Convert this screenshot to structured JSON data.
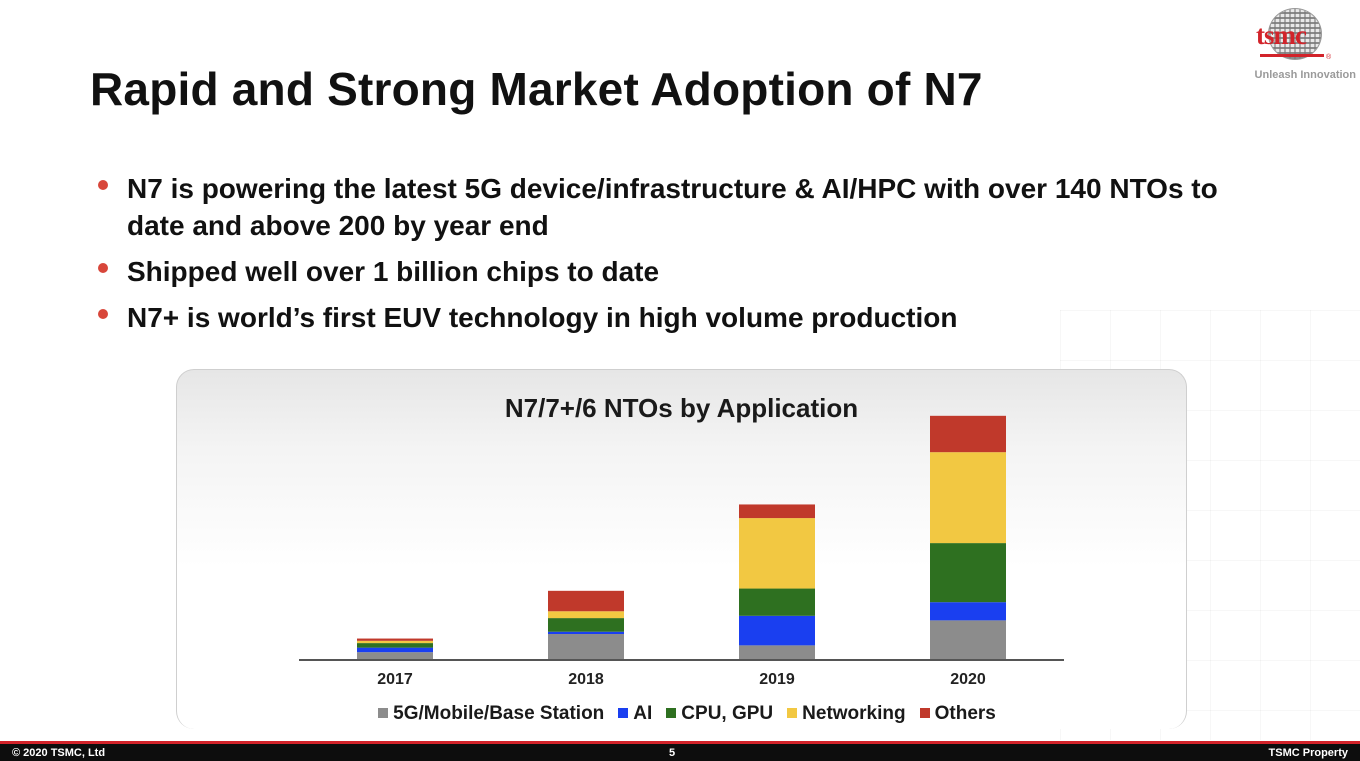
{
  "slide": {
    "title": "Rapid and Strong Market Adoption of N7",
    "bullets": [
      "N7 is powering the latest 5G device/infrastructure & AI/HPC with over 140 NTOs to date and above 200 by year end",
      "Shipped well over 1 billion chips to date",
      "N7+ is world’s first EUV technology in high volume production"
    ]
  },
  "logo": {
    "wordmark": "tsmc",
    "registered": "®",
    "tagline": "Unleash Innovation"
  },
  "footer": {
    "copyright": "© 2020 TSMC, Ltd",
    "page_number": "5",
    "property": "TSMC Property"
  },
  "colors": {
    "accent": "#d2232a",
    "bullet": "#d8463a"
  },
  "chart_data": {
    "type": "bar",
    "stacked": true,
    "title": "N7/7+/6 NTOs by Application",
    "categories": [
      "2017",
      "2018",
      "2019",
      "2020"
    ],
    "series": [
      {
        "name": "5G/Mobile/Base Station",
        "color": "#8c8c8c",
        "values": [
          3,
          11,
          6,
          17
        ]
      },
      {
        "name": "AI",
        "color": "#1a3ff0",
        "values": [
          2,
          1,
          13,
          8
        ]
      },
      {
        "name": "CPU, GPU",
        "color": "#2e7020",
        "values": [
          2,
          6,
          12,
          26
        ]
      },
      {
        "name": "Networking",
        "color": "#f2c842",
        "values": [
          1,
          3,
          31,
          40
        ]
      },
      {
        "name": "Others",
        "color": "#c0392b",
        "values": [
          1,
          9,
          6,
          16
        ]
      }
    ],
    "ylim": [
      0,
      110
    ],
    "grid": false,
    "legend": "bottom"
  }
}
